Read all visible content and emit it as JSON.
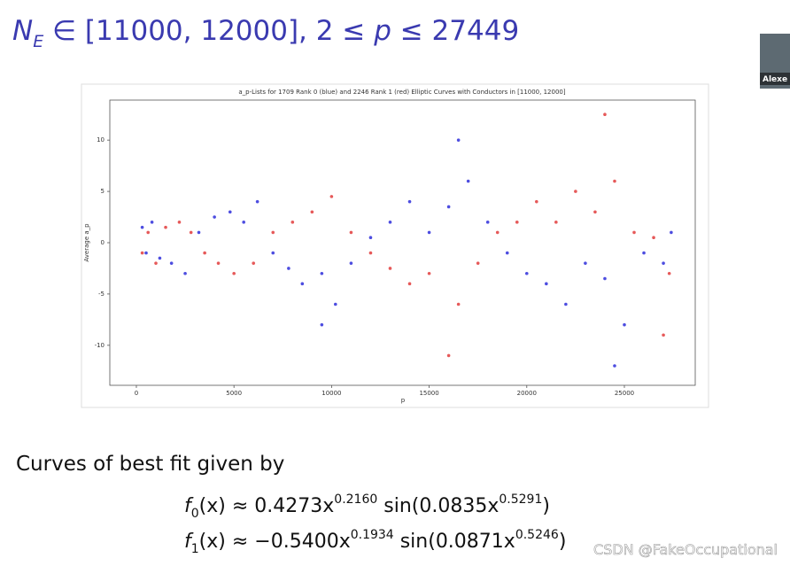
{
  "heading": [
    "N",
    "E",
    " ∈ [11000, 12000], 2 ≤ ",
    "p",
    " ≤ 27449"
  ],
  "presenter": "Alexe",
  "chart_data": {
    "type": "scatter",
    "title": "a_p-Lists for 1709 Rank 0 (blue) and 2246 Rank 1 (red) Elliptic Curves with Conductors in [11000, 12000]",
    "x_label": "p",
    "y_label": "Average a_p",
    "xlim": [
      -1360,
      28630
    ],
    "ylim": [
      -13.9,
      13.9
    ],
    "xticks": [
      0,
      5000,
      10000,
      15000,
      20000,
      25000
    ],
    "yticks": [
      -10,
      -5,
      0,
      5,
      10
    ],
    "series": [
      {
        "color": "#2020d8",
        "x": [
          300,
          500,
          800,
          1200,
          1800,
          2500,
          3200,
          4000,
          4800,
          5500,
          6200,
          7000,
          7800,
          8500,
          9500,
          10200,
          11000,
          12000,
          13000,
          14000,
          15000,
          16000,
          17000,
          18000,
          19000,
          20000,
          21000,
          22000,
          23000,
          24000,
          25000,
          26000,
          27000,
          27400,
          16500,
          24500,
          9500
        ],
        "values": [
          1.5,
          -1,
          2,
          -1.5,
          -2,
          -3,
          1,
          2.5,
          3,
          2,
          4,
          -1,
          -2.5,
          -4,
          -3,
          -6,
          -2,
          0.5,
          2,
          4,
          1,
          3.5,
          6,
          2,
          -1,
          -3,
          -4,
          -6,
          -2,
          -3.5,
          -8,
          -1,
          -2,
          1,
          10,
          -12,
          -8
        ]
      },
      {
        "color": "#e03030",
        "x": [
          300,
          600,
          1000,
          1500,
          2200,
          2800,
          3500,
          4200,
          5000,
          6000,
          7000,
          8000,
          9000,
          10000,
          11000,
          12000,
          13000,
          14000,
          15000,
          16500,
          17500,
          18500,
          19500,
          20500,
          21500,
          22500,
          23500,
          24500,
          25500,
          26500,
          27300,
          24000,
          16000,
          27000
        ],
        "values": [
          -1,
          1,
          -2,
          1.5,
          2,
          1,
          -1,
          -2,
          -3,
          -2,
          1,
          2,
          3,
          4.5,
          1,
          -1,
          -2.5,
          -4,
          -3,
          -6,
          -2,
          1,
          2,
          4,
          2,
          5,
          3,
          6,
          1,
          0.5,
          -3,
          12.5,
          -11,
          -9
        ]
      }
    ]
  },
  "caption": "Curves of best fit given by",
  "formulas": [
    [
      "f",
      "0",
      "(x) ≈ 0.4273x",
      "0.2160",
      " sin(0.0835x",
      "0.5291",
      ")"
    ],
    [
      "f",
      "1",
      "(x) ≈ −0.5400x",
      "0.1934",
      " sin(0.0871x",
      "0.5246",
      ")"
    ]
  ],
  "watermark": "CSDN @FakeOccupational"
}
